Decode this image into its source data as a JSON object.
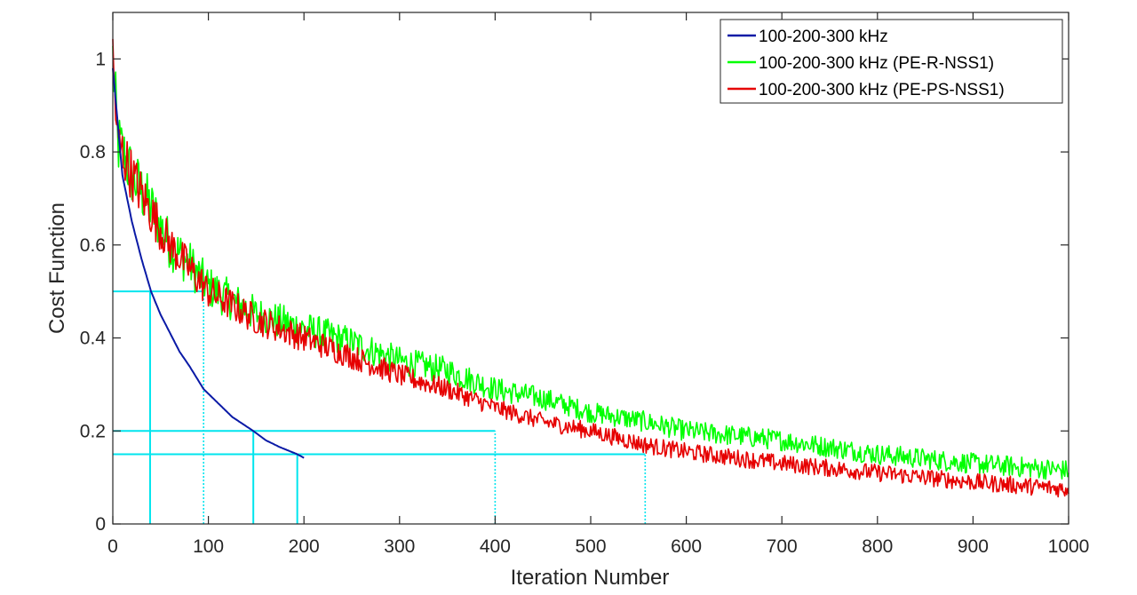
{
  "chart_data": {
    "type": "line",
    "title": "",
    "xlabel": "Iteration Number",
    "ylabel": "Cost Function",
    "xlim": [
      0,
      1000
    ],
    "ylim": [
      0,
      1.1
    ],
    "x_ticks": [
      0,
      100,
      200,
      300,
      400,
      500,
      600,
      700,
      800,
      900,
      1000
    ],
    "x_tick_labels": [
      "0",
      "100",
      "200",
      "300",
      "400",
      "500",
      "600",
      "700",
      "800",
      "900",
      "1000"
    ],
    "y_ticks": [
      0,
      0.2,
      0.4,
      0.6,
      0.8,
      1
    ],
    "y_tick_labels": [
      "0",
      "0.2",
      "0.4",
      "0.6",
      "0.8",
      "1"
    ],
    "legend_position": "top-right",
    "series": [
      {
        "name": "100-200-300 kHz",
        "color": "#0a1aa6",
        "x": [
          0,
          10,
          20,
          30,
          40,
          50,
          60,
          70,
          80,
          95,
          110,
          125,
          147,
          160,
          175,
          193,
          200
        ],
        "values": [
          0.98,
          0.75,
          0.65,
          0.57,
          0.5,
          0.45,
          0.41,
          0.37,
          0.34,
          0.29,
          0.26,
          0.23,
          0.2,
          0.18,
          0.165,
          0.15,
          0.142
        ]
      },
      {
        "name": "100-200-300 kHz (PE-R-NSS1)",
        "color": "#00ff00",
        "x": [
          0,
          5,
          10,
          20,
          40,
          60,
          80,
          100,
          150,
          200,
          250,
          300,
          350,
          400,
          450,
          500,
          557,
          600,
          700,
          800,
          900,
          1000
        ],
        "values": [
          1.0,
          0.82,
          0.8,
          0.75,
          0.68,
          0.6,
          0.56,
          0.51,
          0.45,
          0.42,
          0.39,
          0.35,
          0.33,
          0.29,
          0.27,
          0.24,
          0.22,
          0.2,
          0.18,
          0.15,
          0.13,
          0.115
        ]
      },
      {
        "name": "100-200-300 kHz (PE-PS-NSS1)",
        "color": "#e60000",
        "x": [
          0,
          5,
          10,
          20,
          40,
          60,
          80,
          100,
          150,
          200,
          250,
          300,
          350,
          400,
          450,
          500,
          557,
          600,
          700,
          800,
          900,
          1000
        ],
        "values": [
          1.0,
          0.82,
          0.8,
          0.75,
          0.67,
          0.6,
          0.55,
          0.5,
          0.44,
          0.4,
          0.36,
          0.32,
          0.29,
          0.25,
          0.22,
          0.2,
          0.17,
          0.155,
          0.13,
          0.11,
          0.09,
          0.075
        ]
      }
    ],
    "reference_lines": {
      "color": "#00e5ee",
      "horizontal": [
        {
          "y": 0.5,
          "x_to": 95
        },
        {
          "y": 0.2,
          "x_to": 400
        },
        {
          "y": 0.15,
          "x_to": 557
        }
      ],
      "vertical_solid": [
        {
          "x": 39,
          "y_to": 0.5
        },
        {
          "x": 147,
          "y_to": 0.2
        },
        {
          "x": 193,
          "y_to": 0.15
        }
      ],
      "vertical_dotted": [
        {
          "x": 95,
          "y_to": 0.5
        },
        {
          "x": 400,
          "y_to": 0.2
        },
        {
          "x": 557,
          "y_to": 0.15
        }
      ]
    }
  }
}
